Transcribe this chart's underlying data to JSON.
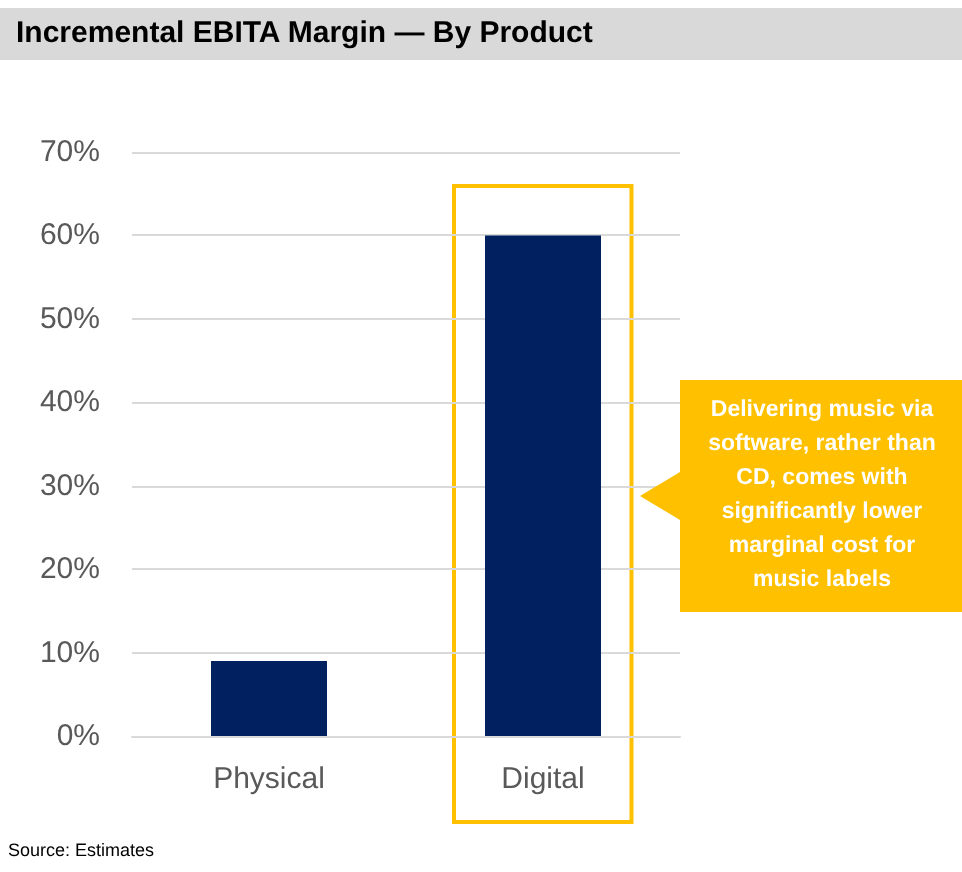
{
  "chart_data": {
    "type": "bar",
    "title": "Incremental EBITA Margin — By Product",
    "categories": [
      "Physical",
      "Digital"
    ],
    "values": [
      9,
      60
    ],
    "color": "#002060",
    "ylim": [
      0,
      70
    ],
    "yticks": [
      {
        "value": 0,
        "label": "0%"
      },
      {
        "value": 10,
        "label": "10%"
      },
      {
        "value": 20,
        "label": "20%"
      },
      {
        "value": 30,
        "label": "30%"
      },
      {
        "value": 40,
        "label": "40%"
      },
      {
        "value": 50,
        "label": "50%"
      },
      {
        "value": 60,
        "label": "60%"
      },
      {
        "value": 70,
        "label": "70%"
      }
    ],
    "grid": "y",
    "bands": [
      {
        "axis": "x",
        "from": "Digital",
        "to": "Digital",
        "color": "#ffc000"
      }
    ],
    "annotations": [
      "Delivering music via software, rather than CD, comes with significantly lower marginal cost for music labels",
      "Source: Estimates"
    ]
  }
}
